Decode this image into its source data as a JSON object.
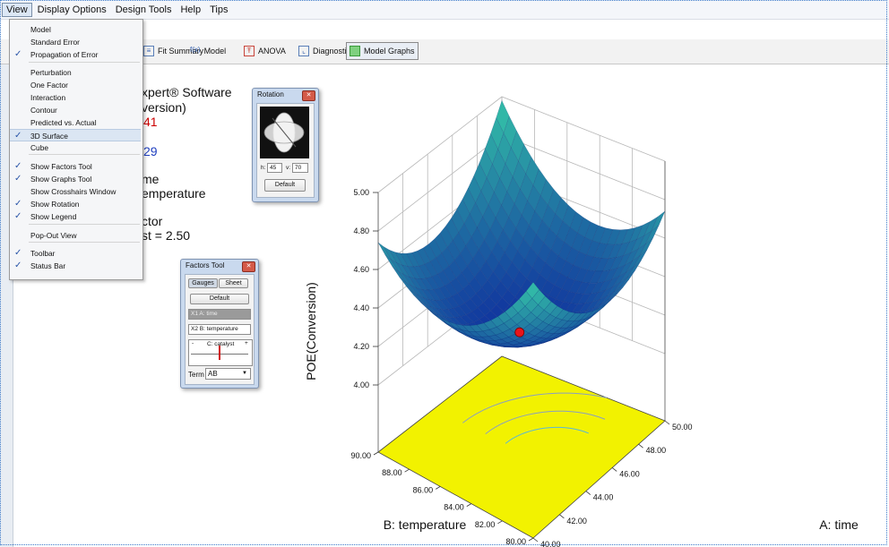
{
  "menubar": {
    "items": [
      "View",
      "Display Options",
      "Design Tools",
      "Help",
      "Tips"
    ]
  },
  "toolbar": {
    "fit_summary": "Fit Summary",
    "fx_glyph": "f(x)",
    "model": "Model",
    "anova": "ANOVA",
    "diagnostics": "Diagnostics",
    "model_graphs": "Model Graphs"
  },
  "view_menu": {
    "items": [
      {
        "label": "Model",
        "checked": false
      },
      {
        "label": "Standard Error",
        "checked": false
      },
      {
        "label": "Propagation of Error",
        "checked": true
      },
      {
        "label": "Perturbation",
        "checked": false
      },
      {
        "label": "One Factor",
        "checked": false
      },
      {
        "label": "Interaction",
        "checked": false
      },
      {
        "label": "Contour",
        "checked": false
      },
      {
        "label": "Predicted vs. Actual",
        "checked": false
      },
      {
        "label": "3D Surface",
        "checked": true,
        "highlighted": true
      },
      {
        "label": "Cube",
        "checked": false
      },
      {
        "label": "Show Factors Tool",
        "checked": true
      },
      {
        "label": "Show Graphs Tool",
        "checked": true
      },
      {
        "label": "Show Crosshairs Window",
        "checked": false
      },
      {
        "label": "Show Rotation",
        "checked": true
      },
      {
        "label": "Show Legend",
        "checked": true
      },
      {
        "label": "Pop-Out View",
        "checked": false
      },
      {
        "label": "Toolbar",
        "checked": true
      },
      {
        "label": "Status Bar",
        "checked": true
      }
    ]
  },
  "legend": {
    "software": "xpert® Software",
    "response": "version)",
    "max_value": "41",
    "min_value": "29",
    "x1": "me",
    "x2": "emperature",
    "actual_factor": "ctor",
    "actual_value": "st = 2.50"
  },
  "rotation_window": {
    "title": "Rotation",
    "h_label": "h:",
    "h_value": "45",
    "v_label": "v:",
    "v_value": "70",
    "default_button": "Default"
  },
  "factors_tool": {
    "title": "Factors Tool",
    "gauges_tab": "Gauges",
    "sheet_tab": "Sheet",
    "default_button": "Default",
    "x1_label": "X1  A: time",
    "x2_label": "X2  B: temperature",
    "slider_label": "C: catalyst",
    "slider_minus": "-",
    "slider_plus": "+",
    "term_label": "Term",
    "term_value": "AB"
  },
  "chart_data": {
    "type": "3d-surface",
    "zlabel": "POE(Conversion)",
    "xlabel": "A: time",
    "ylabel": "B: temperature",
    "z_ticks": [
      "4.00",
      "4.20",
      "4.40",
      "4.60",
      "4.80",
      "5.00"
    ],
    "x_ticks": [
      "40.00",
      "42.00",
      "44.00",
      "46.00",
      "48.00",
      "50.00"
    ],
    "y_ticks": [
      "80.00",
      "82.00",
      "84.00",
      "86.00",
      "88.00",
      "90.00"
    ],
    "xlim": [
      40,
      50
    ],
    "ylim": [
      80,
      90
    ],
    "zlim": [
      4.0,
      5.0
    ],
    "design_point": {
      "time": 45,
      "temperature": 85,
      "poe": 4.22
    },
    "colors": {
      "floor": "#f2f200",
      "point": "#e8141a",
      "surface_low": "#0f2f9e",
      "surface_high": "#35c8a8"
    }
  }
}
